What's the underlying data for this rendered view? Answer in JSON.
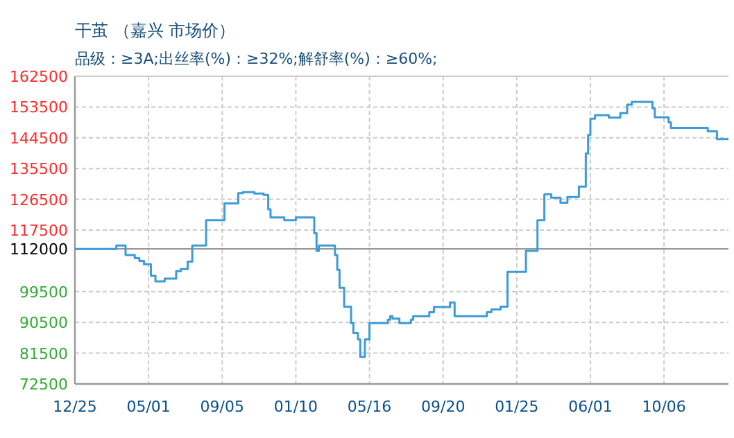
{
  "chart_data": {
    "type": "step",
    "title": "干茧 （嘉兴 市场价）",
    "subtitle": "品级：≥3A;出丝率(%)：≥32%;解舒率(%)：≥60%;",
    "categories": [
      "12/25",
      null,
      null,
      null,
      null,
      null,
      null,
      null,
      null,
      null,
      null,
      null,
      null,
      null,
      null,
      null,
      null,
      null,
      null,
      null,
      null,
      null,
      null,
      null,
      null,
      null,
      null,
      null,
      null,
      null,
      null,
      null,
      "05/01",
      null,
      null,
      null,
      null,
      null,
      null,
      null,
      null,
      null,
      null,
      null,
      null,
      null,
      null,
      null,
      null,
      null,
      null,
      null,
      null,
      null,
      null,
      null,
      null,
      null,
      null,
      null,
      null,
      null,
      null,
      null,
      "09/05",
      null,
      null,
      null,
      null,
      null,
      null,
      null,
      null,
      null,
      null,
      null,
      null,
      null,
      null,
      null,
      null,
      null,
      null,
      null,
      null,
      null,
      null,
      null,
      null,
      null,
      null,
      null,
      null,
      null,
      null,
      null,
      "01/10",
      null,
      null,
      null,
      null,
      null,
      null,
      null,
      null,
      null,
      null,
      null,
      null,
      null,
      null,
      null,
      null,
      null,
      null,
      null,
      null,
      null,
      null,
      null,
      null,
      null,
      null,
      null,
      null,
      null,
      null,
      null,
      "05/16",
      null,
      null,
      null,
      null,
      null,
      null,
      null,
      null,
      null,
      null,
      null,
      null,
      null,
      null,
      null,
      null,
      null,
      null,
      null,
      null,
      null,
      null,
      null,
      null,
      null,
      null,
      null,
      null,
      null,
      null,
      null,
      "09/20",
      null,
      null,
      null,
      null,
      null,
      null,
      null,
      null,
      null,
      null,
      null,
      null,
      null,
      null,
      null,
      null,
      null,
      null,
      null,
      null,
      null,
      null,
      null,
      null,
      null,
      null,
      null,
      null,
      null,
      null,
      null,
      "01/25",
      null,
      null,
      null,
      null,
      null,
      null,
      null,
      null,
      null,
      null,
      null,
      null,
      null,
      null,
      null,
      null,
      null,
      null,
      null,
      null,
      null,
      null,
      null,
      null,
      null,
      null,
      null,
      null,
      null,
      null,
      null,
      "06/01",
      null,
      null,
      null,
      null,
      null,
      null,
      null,
      null,
      null,
      null,
      null,
      null,
      null,
      null,
      null,
      null,
      null,
      null,
      null,
      null,
      null,
      null,
      null,
      null,
      null,
      null,
      null,
      null,
      null,
      null,
      null,
      "10/06",
      null,
      null,
      null,
      null,
      null,
      null,
      null,
      null,
      null,
      null,
      null,
      null,
      null,
      null,
      null,
      null,
      null,
      null,
      null,
      null,
      null,
      null,
      null,
      null,
      null,
      null,
      null,
      null
    ],
    "series": [
      {
        "color": "#3d9bd6",
        "values": [
          112000,
          112000,
          112000,
          112000,
          112000,
          112000,
          112000,
          112000,
          112000,
          112000,
          112000,
          112000,
          112000,
          112000,
          112000,
          112000,
          112000,
          112000,
          113000,
          113000,
          113000,
          113000,
          110200,
          110200,
          110200,
          110200,
          109300,
          109300,
          108500,
          108500,
          107500,
          107500,
          107500,
          104100,
          104100,
          102500,
          102500,
          102500,
          102500,
          103300,
          103300,
          103300,
          103300,
          103300,
          105500,
          105500,
          106100,
          106100,
          106100,
          108300,
          108300,
          113000,
          113000,
          113000,
          113000,
          113000,
          113000,
          120400,
          120400,
          120400,
          120400,
          120400,
          120400,
          120400,
          120400,
          125300,
          125300,
          125300,
          125300,
          125300,
          125300,
          128300,
          128300,
          128600,
          128600,
          128600,
          128600,
          128600,
          128200,
          128200,
          128200,
          128200,
          127800,
          127800,
          123600,
          121200,
          121200,
          121200,
          121200,
          121200,
          121200,
          120400,
          120400,
          120400,
          120400,
          120400,
          121200,
          121200,
          121200,
          121200,
          121200,
          121200,
          121200,
          121200,
          116600,
          111400,
          113000,
          113000,
          113000,
          113000,
          113000,
          113000,
          113000,
          110200,
          105900,
          100600,
          100600,
          95100,
          95100,
          95100,
          90300,
          87400,
          87400,
          85500,
          80400,
          80400,
          85500,
          85500,
          90300,
          90300,
          90300,
          90300,
          90300,
          90300,
          90300,
          90300,
          91300,
          92300,
          91600,
          91600,
          91600,
          90300,
          90300,
          90300,
          90300,
          90300,
          91300,
          92300,
          92300,
          92300,
          92300,
          92300,
          92300,
          92300,
          93500,
          93500,
          95000,
          95000,
          95000,
          95000,
          95000,
          95000,
          95000,
          96300,
          96300,
          92300,
          92300,
          92300,
          92300,
          92300,
          92300,
          92300,
          92300,
          92300,
          92300,
          92300,
          92300,
          92300,
          92300,
          93500,
          93500,
          94300,
          94300,
          94300,
          94300,
          95100,
          95100,
          95100,
          105300,
          105300,
          105300,
          105300,
          105300,
          105300,
          105300,
          105300,
          111400,
          111400,
          111400,
          111400,
          111400,
          120400,
          120400,
          120400,
          128000,
          128000,
          128000,
          127000,
          127000,
          127000,
          127000,
          125500,
          125500,
          125500,
          127200,
          127200,
          127200,
          127200,
          127200,
          130200,
          130200,
          130200,
          139900,
          145300,
          150100,
          150100,
          151100,
          151100,
          151100,
          151100,
          151100,
          151100,
          150400,
          150400,
          150400,
          150400,
          150400,
          151700,
          151700,
          151700,
          154200,
          154200,
          155000,
          155000,
          155000,
          155000,
          155000,
          155000,
          155000,
          155000,
          155000,
          153100,
          150500,
          150500,
          150500,
          150500,
          150500,
          150500,
          149000,
          147400,
          147400,
          147400,
          147400,
          147400,
          147400,
          147400,
          147400,
          147400,
          147400,
          147400,
          147400,
          147400,
          147400,
          147400,
          147400,
          146400,
          146400,
          146400,
          146400,
          144100,
          144100,
          144100,
          144100,
          144100,
          144100
        ]
      }
    ],
    "ylim": [
      72500,
      162500
    ],
    "yticks": [
      72500,
      81500,
      90500,
      99500,
      117500,
      126500,
      135500,
      144500,
      153500,
      162500
    ],
    "ref_lines": [
      {
        "axis": "y",
        "value": 112000,
        "label": "112000",
        "color": "#999999"
      }
    ],
    "grid": true
  }
}
